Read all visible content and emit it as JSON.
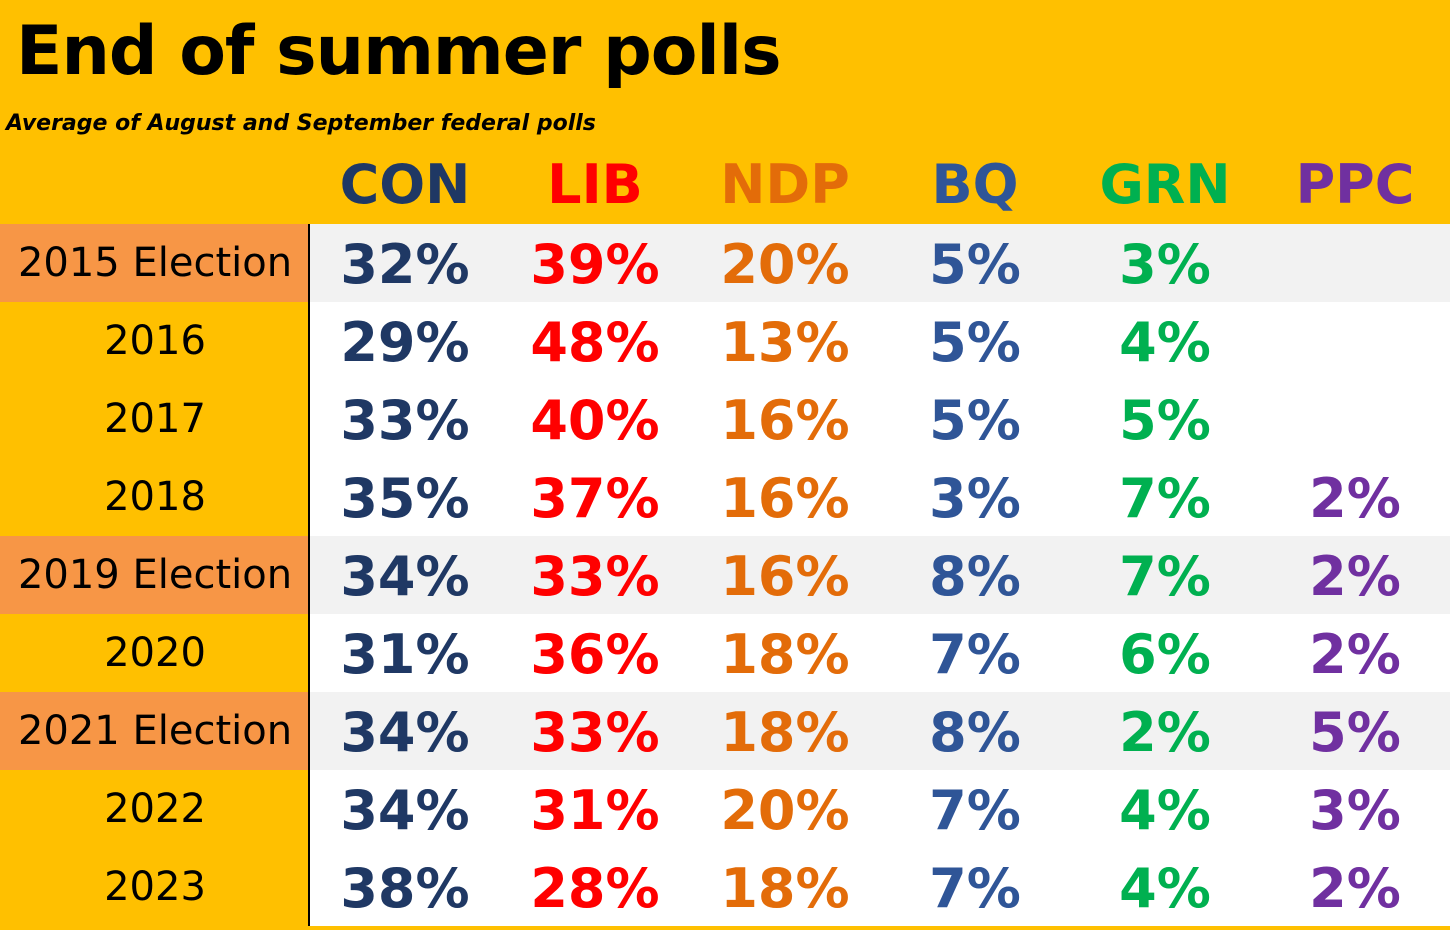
{
  "title": "End of summer polls",
  "subtitle": "Average of August and September federal polls",
  "colors": {
    "CON": "#1F3864",
    "LIB": "#FF0000",
    "NDP": "#E36C09",
    "BQ": "#2F5597",
    "GRN": "#00B050",
    "PPC": "#7030A0",
    "background": "#FFC000",
    "election_row": "#F79646"
  },
  "chart_data": {
    "type": "table",
    "title": "End of summer polls",
    "subtitle": "Average of August and September federal polls",
    "columns": [
      "CON",
      "LIB",
      "NDP",
      "BQ",
      "GRN",
      "PPC"
    ],
    "rows": [
      {
        "label": "2015 Election",
        "election": true,
        "values": [
          "32%",
          "39%",
          "20%",
          "5%",
          "3%",
          ""
        ]
      },
      {
        "label": "2016",
        "election": false,
        "values": [
          "29%",
          "48%",
          "13%",
          "5%",
          "4%",
          ""
        ]
      },
      {
        "label": "2017",
        "election": false,
        "values": [
          "33%",
          "40%",
          "16%",
          "5%",
          "5%",
          ""
        ]
      },
      {
        "label": "2018",
        "election": false,
        "values": [
          "35%",
          "37%",
          "16%",
          "3%",
          "7%",
          "2%"
        ]
      },
      {
        "label": "2019 Election",
        "election": true,
        "values": [
          "34%",
          "33%",
          "16%",
          "8%",
          "7%",
          "2%"
        ]
      },
      {
        "label": "2020",
        "election": false,
        "values": [
          "31%",
          "36%",
          "18%",
          "7%",
          "6%",
          "2%"
        ]
      },
      {
        "label": "2021 Election",
        "election": true,
        "values": [
          "34%",
          "33%",
          "18%",
          "8%",
          "2%",
          "5%"
        ]
      },
      {
        "label": "2022",
        "election": false,
        "values": [
          "34%",
          "31%",
          "20%",
          "7%",
          "4%",
          "3%"
        ]
      },
      {
        "label": "2023",
        "election": false,
        "values": [
          "38%",
          "28%",
          "18%",
          "7%",
          "4%",
          "2%"
        ]
      }
    ]
  }
}
